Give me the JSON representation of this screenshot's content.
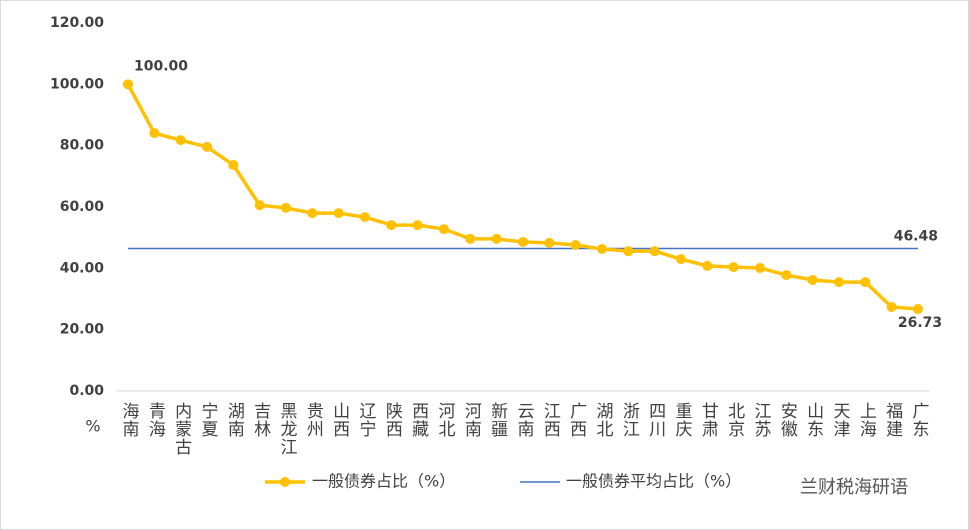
{
  "chart_data": {
    "type": "line",
    "categories": [
      "海南",
      "青海",
      "内蒙古",
      "宁夏",
      "湖南",
      "吉林",
      "黑龙江",
      "贵州",
      "山西",
      "辽宁",
      "陕西",
      "西藏",
      "河北",
      "河南",
      "新疆",
      "云南",
      "江西",
      "广西",
      "湖北",
      "浙江",
      "四川",
      "重庆",
      "甘肃",
      "北京",
      "江苏",
      "安徽",
      "山东",
      "天津",
      "上海",
      "福建",
      "广东"
    ],
    "series": [
      {
        "name": "一般债券占比（%）",
        "color": "#ffc000",
        "values": [
          100,
          84.1,
          81.8,
          79.6,
          73.7,
          60.6,
          59.7,
          58.0,
          58.0,
          56.7,
          54.1,
          54.1,
          52.8,
          49.6,
          49.6,
          48.6,
          48.3,
          47.6,
          46.3,
          45.6,
          45.6,
          43.0,
          40.8,
          40.4,
          40.1,
          37.8,
          36.2,
          35.5,
          35.5,
          27.4,
          26.73
        ],
        "value_labels": [
          "100.00",
          null,
          null,
          null,
          null,
          null,
          null,
          null,
          null,
          null,
          null,
          null,
          null,
          null,
          null,
          null,
          null,
          null,
          null,
          null,
          null,
          null,
          null,
          null,
          null,
          null,
          null,
          null,
          null,
          null,
          "26.73"
        ]
      }
    ],
    "average": {
      "name": "一般债券平均占比（%）",
      "color": "#4472c4",
      "value": 46.48
    },
    "ylim": [
      0,
      120
    ],
    "yticks": [
      {
        "value": 0,
        "label": "0.00"
      },
      {
        "value": 20,
        "label": "20.00"
      },
      {
        "value": 40,
        "label": "40.00"
      },
      {
        "value": 60,
        "label": "60.00"
      },
      {
        "value": 80,
        "label": "80.00"
      },
      {
        "value": 100,
        "label": "100.00"
      },
      {
        "value": 120,
        "label": "120.00"
      }
    ],
    "y_unit": "%",
    "grid": false,
    "legend": "bottom",
    "watermark": "兰财税海研语"
  }
}
